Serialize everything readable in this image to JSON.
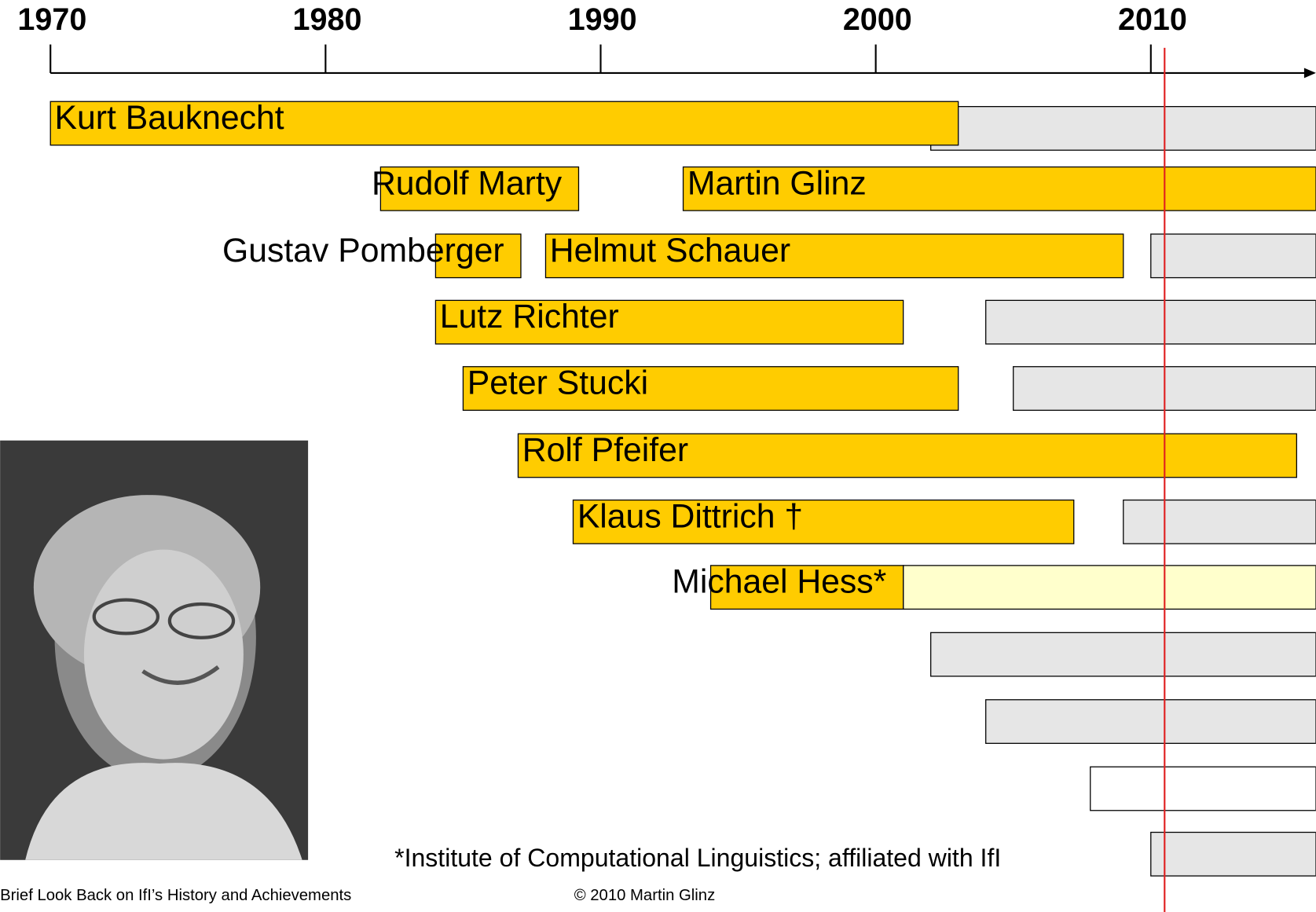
{
  "chart_data": {
    "type": "gantt",
    "xlim": [
      1970,
      2016
    ],
    "xticks": [
      1970,
      1980,
      1990,
      2000,
      2010
    ],
    "today": 2010.5,
    "rows": [
      {
        "label": "Kurt Bauknecht",
        "segments": [
          {
            "start": 2002,
            "end": 2016,
            "color": "#e6e6e6"
          },
          {
            "start": 1970,
            "end": 2003,
            "color": "#ffcc00"
          }
        ]
      },
      {
        "label": "Rudolf Marty",
        "segments": [
          {
            "start": 1982,
            "end": 1989.2,
            "color": "#ffcc00"
          }
        ]
      },
      {
        "label": "Martin Glinz",
        "segments": [
          {
            "start": 1993,
            "end": 2016,
            "color": "#ffcc00"
          }
        ]
      },
      {
        "label": "Gustav Pomberger",
        "segments": [
          {
            "start": 1984,
            "end": 1987.1,
            "color": "#ffcc00"
          }
        ]
      },
      {
        "label": "Helmut Schauer",
        "segments": [
          {
            "start": 1988,
            "end": 2009,
            "color": "#ffcc00"
          },
          {
            "start": 2010,
            "end": 2016,
            "color": "#e6e6e6"
          }
        ]
      },
      {
        "label": "Lutz Richter",
        "segments": [
          {
            "start": 1984,
            "end": 2001,
            "color": "#ffcc00"
          },
          {
            "start": 2004,
            "end": 2016,
            "color": "#e6e6e6"
          }
        ]
      },
      {
        "label": "Peter Stucki",
        "segments": [
          {
            "start": 1985,
            "end": 2003,
            "color": "#ffcc00"
          },
          {
            "start": 2005,
            "end": 2016,
            "color": "#e6e6e6"
          }
        ]
      },
      {
        "label": "Rolf Pfeifer",
        "segments": [
          {
            "start": 1987,
            "end": 2015.3,
            "color": "#ffcc00"
          }
        ]
      },
      {
        "label": "Klaus Dittrich †",
        "segments": [
          {
            "start": 1989,
            "end": 2007.2,
            "color": "#ffcc00"
          },
          {
            "start": 2009,
            "end": 2016,
            "color": "#e6e6e6"
          }
        ]
      },
      {
        "label": "Michael Hess*",
        "segments": [
          {
            "start": 2001,
            "end": 2016,
            "color": "#ffffcc"
          },
          {
            "start": 1994,
            "end": 2001,
            "color": "#ffcc00"
          }
        ]
      },
      {
        "segments": [
          {
            "start": 2002,
            "end": 2016,
            "color": "#e6e6e6"
          }
        ]
      },
      {
        "segments": [
          {
            "start": 2004,
            "end": 2016,
            "color": "#e6e6e6"
          }
        ]
      },
      {
        "segments": [
          {
            "start": 2007.8,
            "end": 2016,
            "color": "#ffffff"
          }
        ]
      },
      {
        "segments": [
          {
            "start": 2010,
            "end": 2016,
            "color": "#e6e6e6"
          }
        ]
      }
    ],
    "footnote": "*Institute of Computational Linguistics; affiliated with IfI",
    "footer_left": "Brief Look Back on IfI’s History and Achievements",
    "footer_center": "© 2010 Martin Glinz"
  }
}
